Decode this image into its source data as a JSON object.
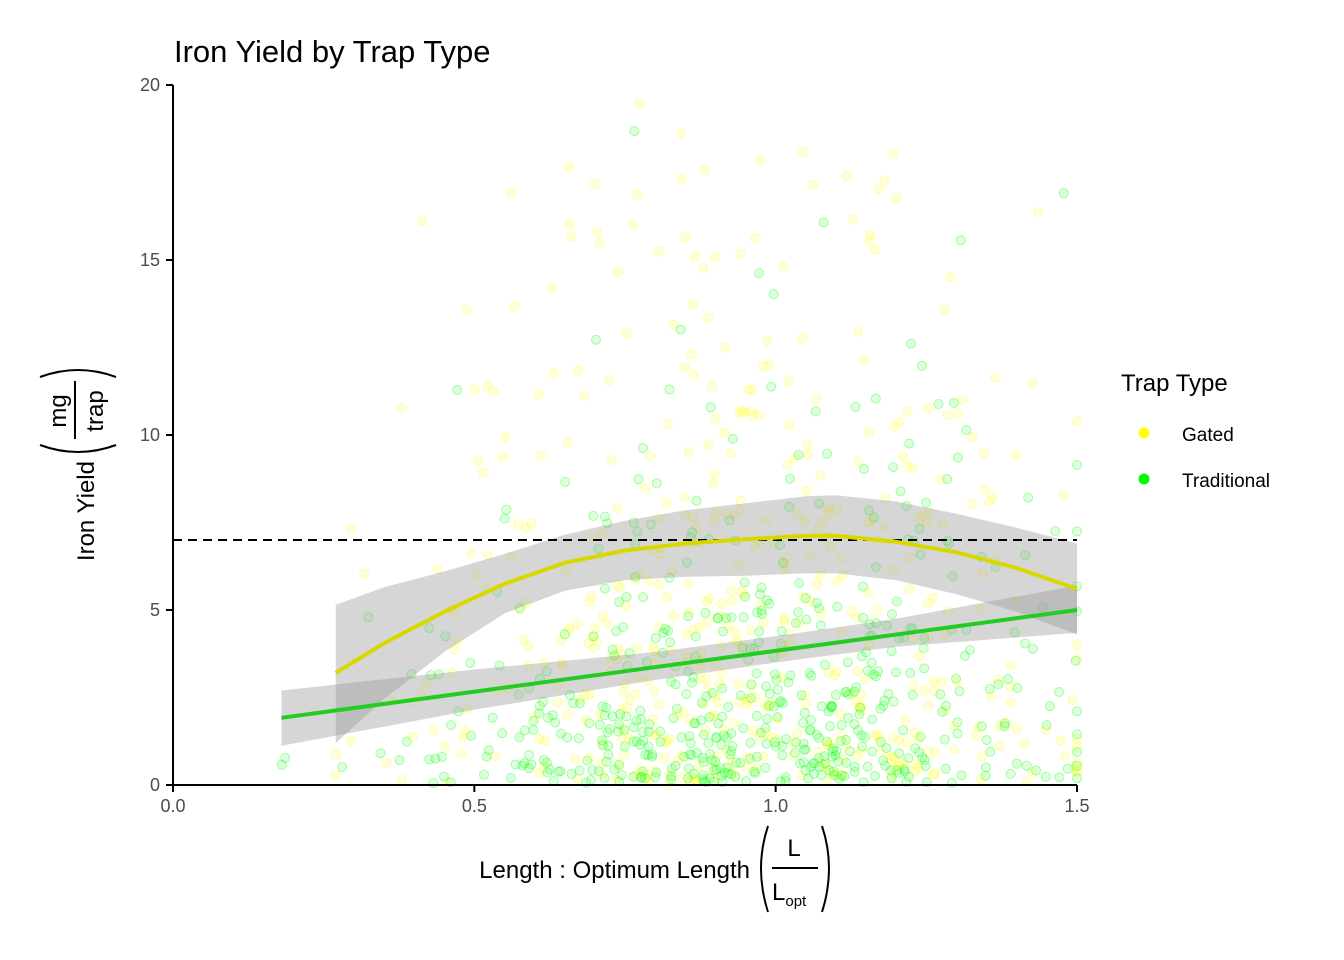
{
  "chart_data": {
    "type": "scatter",
    "title": "Iron Yield by Trap Type",
    "xlabel": "Length : Optimum Length",
    "xlabel_frac_num": "L",
    "xlabel_frac_den": "L",
    "xlabel_frac_den_sub": "opt",
    "ylabel": "Iron Yield",
    "ylabel_frac_num": "mg",
    "ylabel_frac_den": "trap",
    "xlim": [
      0,
      1.5
    ],
    "ylim": [
      0,
      20
    ],
    "x_ticks": [
      0.0,
      0.5,
      1.0,
      1.5
    ],
    "x_tick_labels": [
      "0.0",
      "0.5",
      "1.0",
      "1.5"
    ],
    "y_ticks": [
      0,
      5,
      10,
      15,
      20
    ],
    "y_tick_labels": [
      "0",
      "5",
      "10",
      "15",
      "20"
    ],
    "grid": false,
    "legend": {
      "title": "Trap Type",
      "placement": "right",
      "entries": [
        "Gated",
        "Traditional"
      ]
    },
    "reference_line": {
      "y": 7,
      "style": "dashed",
      "color": "#000000"
    },
    "series": [
      {
        "name": "Gated",
        "color": "#ffff00",
        "line_color": "#d8d800",
        "smooth_type": "loess",
        "x_range": [
          0.27,
          1.5
        ],
        "smooth": [
          [
            0.27,
            3.2
          ],
          [
            0.35,
            4.05
          ],
          [
            0.45,
            4.95
          ],
          [
            0.55,
            5.75
          ],
          [
            0.65,
            6.35
          ],
          [
            0.75,
            6.7
          ],
          [
            0.85,
            6.9
          ],
          [
            0.95,
            7.02
          ],
          [
            1.05,
            7.12
          ],
          [
            1.1,
            7.12
          ],
          [
            1.2,
            6.95
          ],
          [
            1.3,
            6.65
          ],
          [
            1.4,
            6.2
          ],
          [
            1.5,
            5.6
          ]
        ],
        "ci_lower": [
          [
            0.27,
            1.2
          ],
          [
            0.35,
            2.45
          ],
          [
            0.45,
            3.8
          ],
          [
            0.55,
            4.9
          ],
          [
            0.65,
            5.55
          ],
          [
            0.75,
            5.85
          ],
          [
            0.85,
            5.95
          ],
          [
            0.95,
            5.98
          ],
          [
            1.05,
            6.05
          ],
          [
            1.1,
            6.05
          ],
          [
            1.2,
            5.85
          ],
          [
            1.3,
            5.45
          ],
          [
            1.4,
            4.95
          ],
          [
            1.5,
            4.3
          ]
        ],
        "ci_upper": [
          [
            0.27,
            5.15
          ],
          [
            0.35,
            5.65
          ],
          [
            0.45,
            6.1
          ],
          [
            0.55,
            6.6
          ],
          [
            0.65,
            7.15
          ],
          [
            0.75,
            7.55
          ],
          [
            0.85,
            7.85
          ],
          [
            0.95,
            8.05
          ],
          [
            1.05,
            8.25
          ],
          [
            1.1,
            8.28
          ],
          [
            1.2,
            8.1
          ],
          [
            1.3,
            7.75
          ],
          [
            1.4,
            7.35
          ],
          [
            1.5,
            6.9
          ]
        ]
      },
      {
        "name": "Traditional",
        "color": "#00ff00",
        "line_color": "#22cc22",
        "smooth_type": "linear",
        "x_range": [
          0.18,
          1.5
        ],
        "smooth": [
          [
            0.18,
            1.92
          ],
          [
            1.5,
            5.0
          ]
        ],
        "ci_lower": [
          [
            0.18,
            1.12
          ],
          [
            0.5,
            2.15
          ],
          [
            0.8,
            3.0
          ],
          [
            1.0,
            3.5
          ],
          [
            1.2,
            3.95
          ],
          [
            1.5,
            4.35
          ]
        ],
        "ci_upper": [
          [
            0.18,
            2.7
          ],
          [
            0.5,
            3.3
          ],
          [
            0.8,
            3.8
          ],
          [
            1.0,
            4.25
          ],
          [
            1.2,
            4.75
          ],
          [
            1.5,
            5.7
          ]
        ]
      }
    ],
    "points_note_count": 1100
  }
}
